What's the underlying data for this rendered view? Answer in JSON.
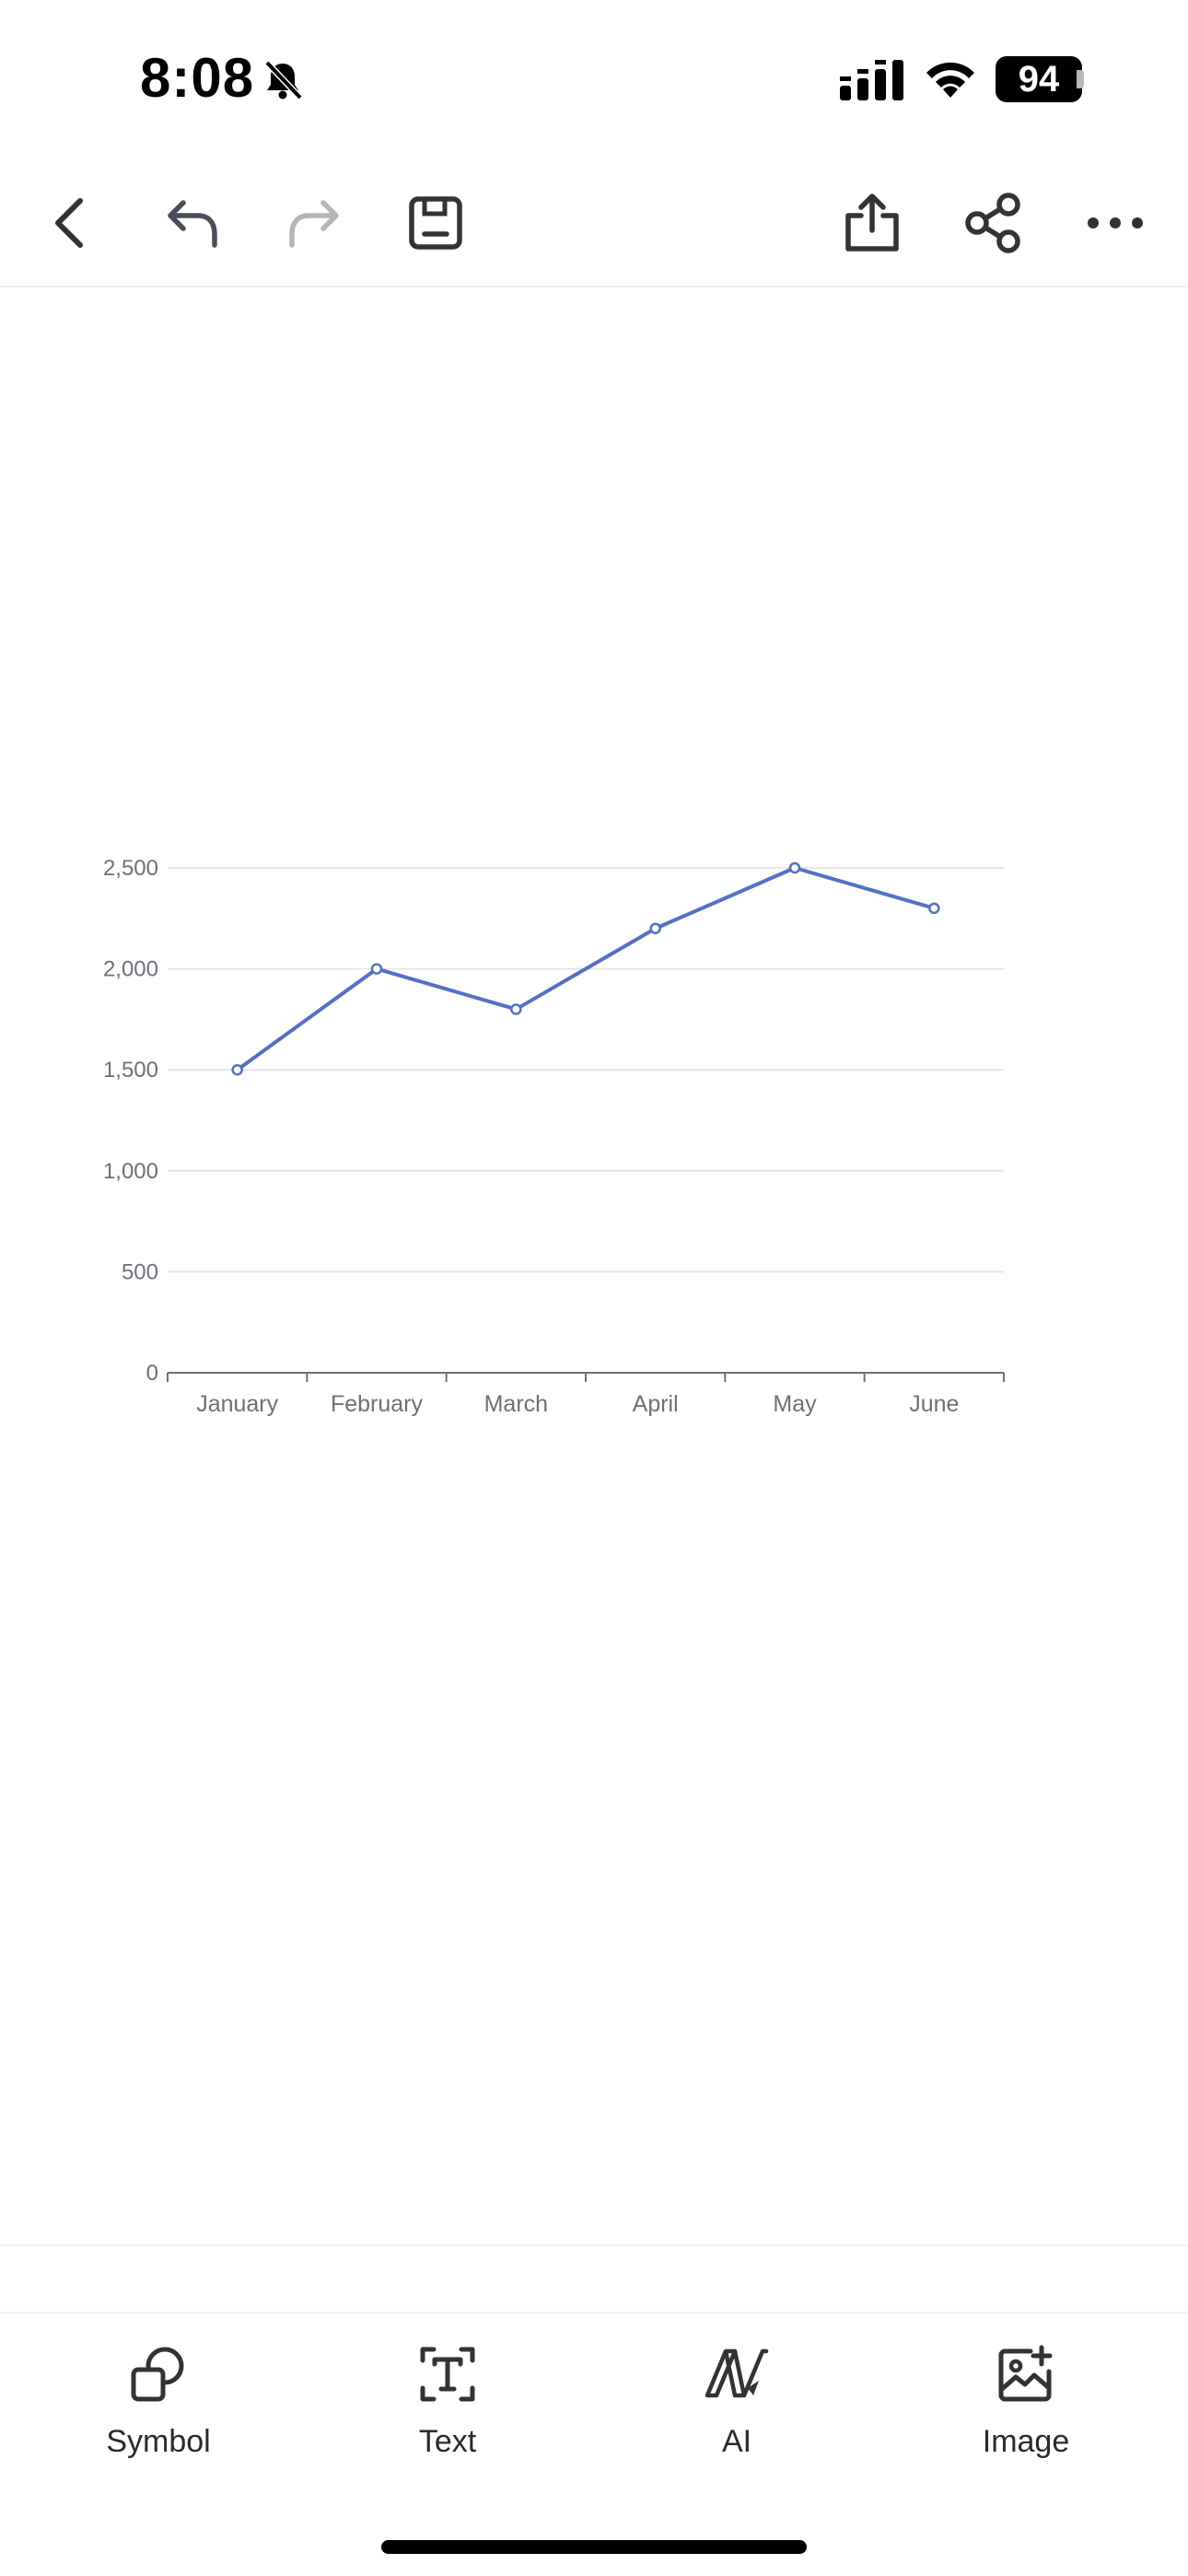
{
  "status_bar": {
    "time": "8:08",
    "battery": "94",
    "icons": [
      "bell-slash-icon",
      "cellular-signal-icon",
      "wifi-icon",
      "battery-icon"
    ]
  },
  "toolbar": {
    "icons": [
      "back-icon",
      "undo-icon",
      "redo-icon",
      "save-icon",
      "export-icon",
      "share-icon",
      "more-icon"
    ],
    "redo_enabled": false
  },
  "chart_data": {
    "type": "line",
    "categories": [
      "January",
      "February",
      "March",
      "April",
      "May",
      "June"
    ],
    "series": [
      {
        "values": [
          1500,
          2000,
          1800,
          2200,
          2500,
          2300
        ],
        "color": "#5470c6"
      }
    ],
    "ylim": [
      0,
      2500
    ],
    "yticks": [
      "0",
      "500",
      "1,000",
      "1,500",
      "2,000",
      "2,500"
    ],
    "grid": true
  },
  "bottom_bar": {
    "items": [
      {
        "label": "Symbol",
        "icon": "symbol-icon"
      },
      {
        "label": "Text",
        "icon": "text-icon"
      },
      {
        "label": "AI",
        "icon": "ai-icon"
      },
      {
        "label": "Image",
        "icon": "add-image-icon"
      }
    ]
  },
  "colors": {
    "series": "#5470c6",
    "gridline": "#e6e6e6",
    "axis": "#6e7079",
    "tick_label": "#6e7079"
  }
}
